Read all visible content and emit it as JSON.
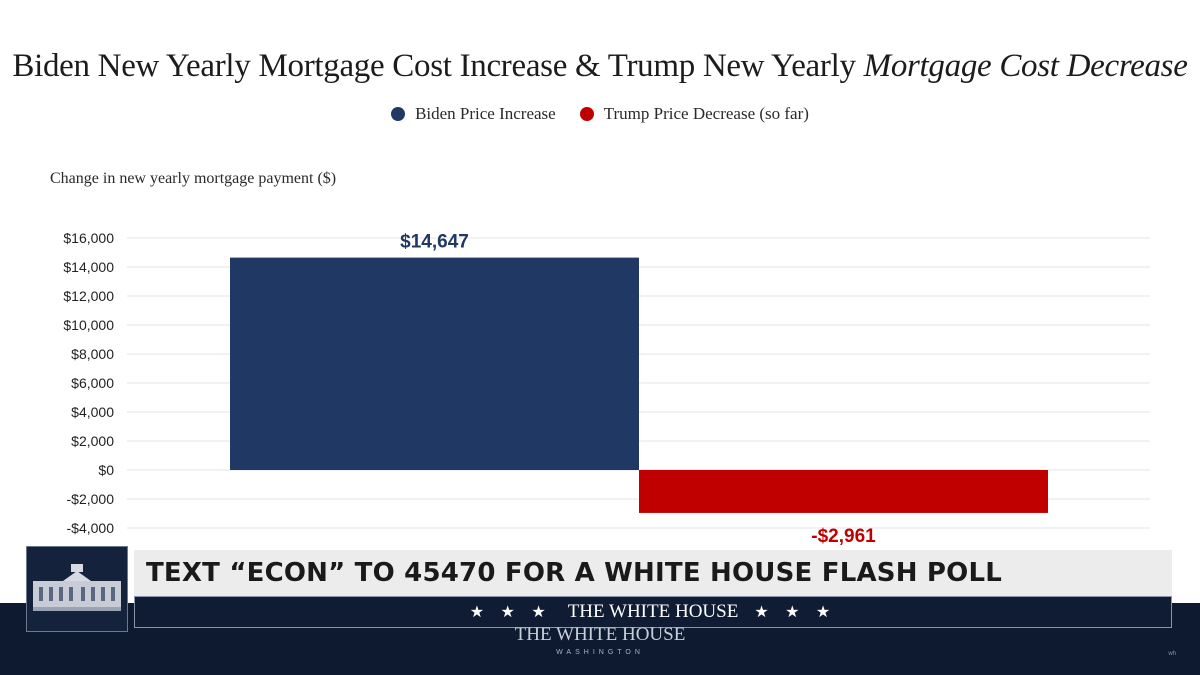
{
  "title": {
    "part1": "Biden New Yearly Mortgage Cost Increase & Trump New Yearly ",
    "part2": "Mortgage Cost Decrease"
  },
  "chart_data": {
    "type": "bar",
    "ylabel": "Change in new yearly mortgage payment ($)",
    "ylim": [
      -4000,
      16000
    ],
    "yticks": [
      16000,
      14000,
      12000,
      10000,
      8000,
      6000,
      4000,
      2000,
      0,
      -2000,
      -4000
    ],
    "ytick_labels": [
      "$16,000",
      "$14,000",
      "$12,000",
      "$10,000",
      "$8,000",
      "$6,000",
      "$4,000",
      "$2,000",
      "$0",
      "-$2,000",
      "-$4,000"
    ],
    "grid": true,
    "legend_position": "top-center",
    "series": [
      {
        "name": "Biden Price Increase",
        "value": 14647,
        "label": "$14,647",
        "color": "#1f3864"
      },
      {
        "name": "Trump Price Decrease (so far)",
        "value": -2961,
        "label": "-$2,961",
        "color": "#c00000"
      }
    ]
  },
  "overlay": {
    "banner_text": "TEXT “ECON” TO 45470 FOR A WHITE HOUSE FLASH POLL",
    "stars_left": "★ ★ ★",
    "bar_name": "THE WHITE HOUSE",
    "stars_right": "★ ★ ★",
    "watermark_name": "THE WHITE HOUSE",
    "watermark_sub": "WASHINGTON",
    "corner_mark": "wh"
  }
}
